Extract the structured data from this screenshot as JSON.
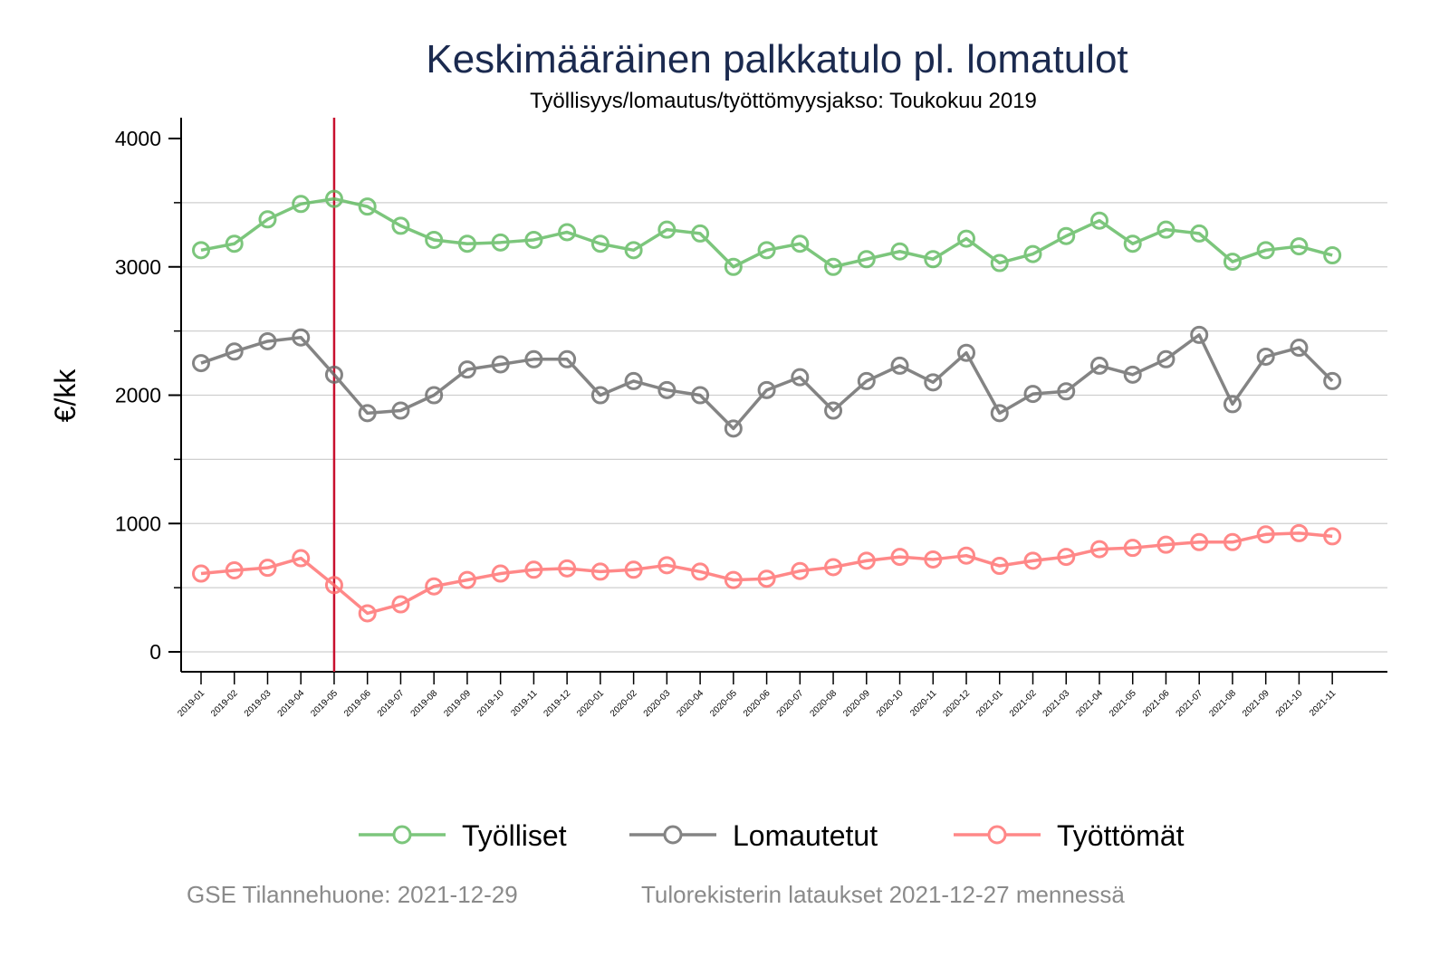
{
  "chart_data": {
    "type": "line",
    "title": "Keskimääräinen palkkatulo pl. lomatulot",
    "subtitle": "Työllisyys/lomautus/työttömyysjakso: Toukokuu 2019",
    "xlabel": "",
    "ylabel": "€/kk",
    "ylim": [
      -150,
      4170
    ],
    "yticks": [
      0,
      1000,
      2000,
      3000,
      4000
    ],
    "ytick_labels": [
      "0",
      "1000",
      "2000",
      "3000",
      "4000"
    ],
    "minor_yticks": [
      500,
      1500,
      2500,
      3500
    ],
    "gridlines": [
      0,
      500,
      1000,
      1500,
      2000,
      2500,
      3000,
      3500
    ],
    "grid": true,
    "reference_line": {
      "x": "2019-05",
      "color": "#c8102e"
    },
    "categories": [
      "2019-01",
      "2019-02",
      "2019-03",
      "2019-04",
      "2019-05",
      "2019-06",
      "2019-07",
      "2019-08",
      "2019-09",
      "2019-10",
      "2019-11",
      "2019-12",
      "2020-01",
      "2020-02",
      "2020-03",
      "2020-04",
      "2020-05",
      "2020-06",
      "2020-07",
      "2020-08",
      "2020-09",
      "2020-10",
      "2020-11",
      "2020-12",
      "2021-01",
      "2021-02",
      "2021-03",
      "2021-04",
      "2021-05",
      "2021-06",
      "2021-07",
      "2021-08",
      "2021-09",
      "2021-10",
      "2021-11"
    ],
    "series": [
      {
        "name": "Työlliset",
        "color": "#5cb85c",
        "values": [
          3130,
          3180,
          3370,
          3490,
          3530,
          3470,
          3320,
          3210,
          3180,
          3190,
          3210,
          3270,
          3180,
          3130,
          3290,
          3260,
          3000,
          3130,
          3180,
          3000,
          3060,
          3120,
          3060,
          3220,
          3030,
          3100,
          3240,
          3360,
          3180,
          3290,
          3260,
          3040,
          3130,
          3160,
          3090
        ]
      },
      {
        "name": "Lomautetut",
        "color": "#666666",
        "values": [
          2250,
          2340,
          2420,
          2450,
          2160,
          1860,
          1880,
          2000,
          2200,
          2240,
          2280,
          2280,
          2000,
          2110,
          2040,
          2000,
          1740,
          2040,
          2140,
          1880,
          2110,
          2230,
          2100,
          2330,
          1860,
          2010,
          2030,
          2230,
          2160,
          2280,
          2470,
          1930,
          2300,
          2370,
          2110
        ]
      },
      {
        "name": "Työttömät",
        "color": "#ff6b6b",
        "values": [
          610,
          635,
          655,
          730,
          520,
          300,
          370,
          510,
          560,
          610,
          640,
          650,
          625,
          640,
          675,
          625,
          560,
          570,
          630,
          660,
          710,
          740,
          720,
          750,
          670,
          710,
          740,
          800,
          810,
          835,
          855,
          855,
          915,
          925,
          900
        ]
      }
    ],
    "legend_position": "bottom",
    "footnotes": [
      "GSE Tilannehuone: 2021-12-29",
      "Tulorekisterin lataukset 2021-12-27 mennessä"
    ]
  }
}
